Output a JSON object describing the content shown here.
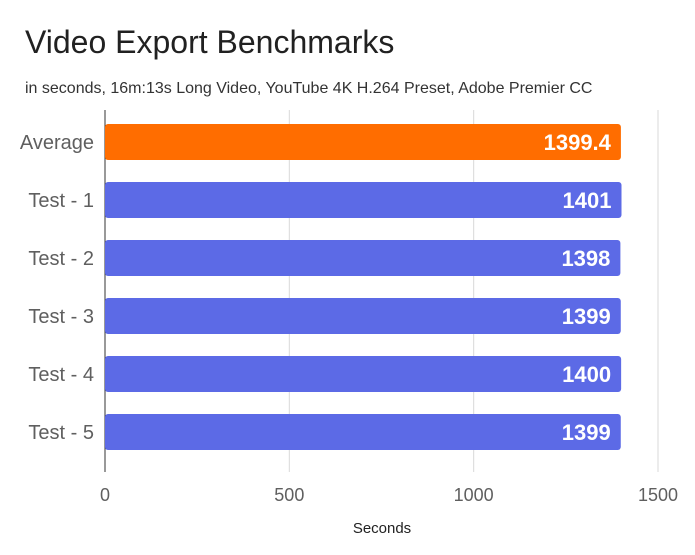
{
  "chart_data": {
    "type": "bar",
    "orientation": "horizontal",
    "title": "Video Export Benchmarks",
    "subtitle": "in seconds, 16m:13s Long Video, YouTube 4K H.264 Preset, Adobe Premier CC",
    "xlabel": "Seconds",
    "ylabel": "",
    "xlim": [
      0,
      1500
    ],
    "xticks": [
      0,
      500,
      1000,
      1500
    ],
    "categories": [
      "Average",
      "Test - 1",
      "Test - 2",
      "Test - 3",
      "Test - 4",
      "Test - 5"
    ],
    "values": [
      1399.4,
      1401,
      1398,
      1399,
      1400,
      1399
    ],
    "value_labels": [
      "1399.4",
      "1401",
      "1398",
      "1399",
      "1400",
      "1399"
    ],
    "colors": [
      "#ff6d00",
      "#5c6ae6",
      "#5c6ae6",
      "#5c6ae6",
      "#5c6ae6",
      "#5c6ae6"
    ],
    "grid": true,
    "legend": "none"
  }
}
